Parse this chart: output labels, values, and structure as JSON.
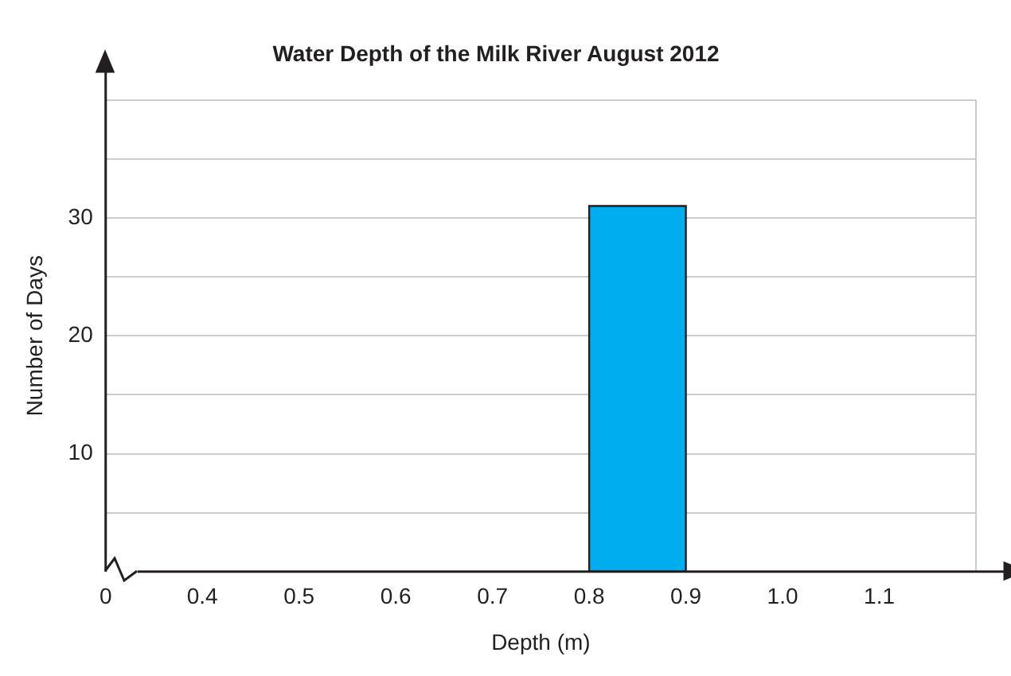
{
  "chart_data": {
    "type": "histogram",
    "title": "Water Depth of the Milk River August 2012",
    "xlabel": "Depth (m)",
    "ylabel": "Number of Days",
    "bins": [
      0.8,
      0.9
    ],
    "values": [
      31
    ],
    "color": "#00adef",
    "xlim": [
      0.3,
      1.2
    ],
    "xticks": [
      {
        "value": 0.3,
        "label": "0"
      },
      0.4,
      0.5,
      0.6,
      0.7,
      0.8,
      0.9,
      {
        "value": 1.0,
        "label": "1.0"
      },
      1.1
    ],
    "ylim": [
      0,
      40
    ],
    "yticks": [
      {
        "value": 5,
        "label": null
      },
      10,
      {
        "value": 15,
        "label": null
      },
      20,
      {
        "value": 25,
        "label": null
      },
      30,
      {
        "value": 35,
        "label": null
      },
      {
        "value": 40,
        "label": null
      }
    ],
    "grid": "y"
  }
}
